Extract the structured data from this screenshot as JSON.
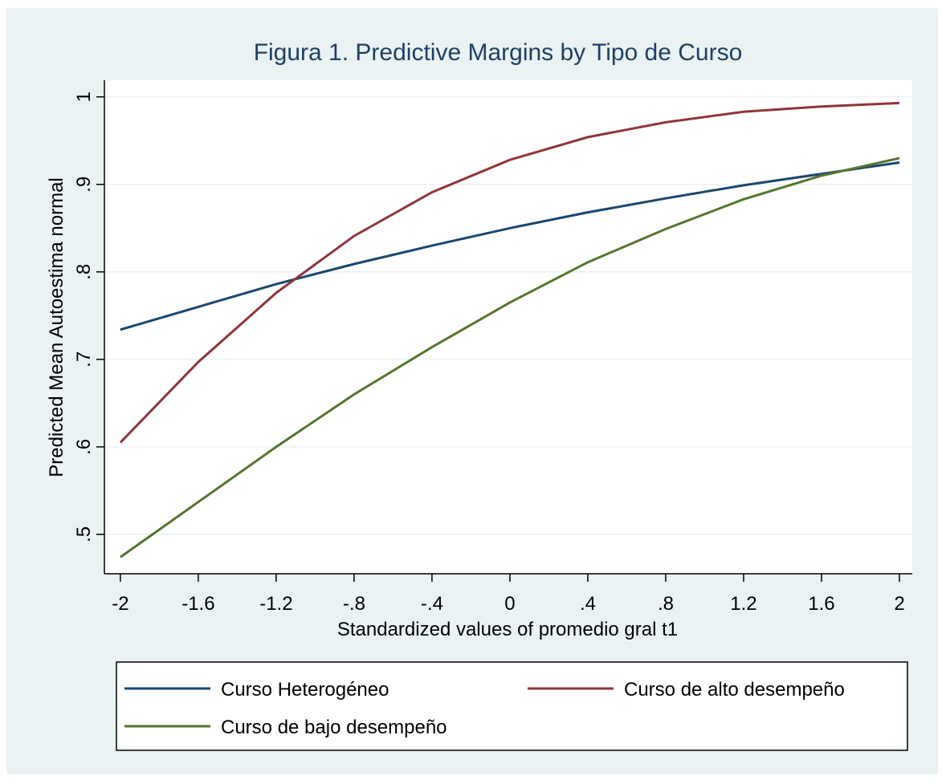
{
  "chart_data": {
    "type": "line",
    "title": "Figura 1. Predictive Margins by Tipo de Curso",
    "x_label": "Standardized values of promedio gral t1",
    "y_label": "Predicted Mean Autoestima normal",
    "x": [
      -2,
      -1.6,
      -1.2,
      -0.8,
      -0.4,
      0,
      0.4,
      0.8,
      1.2,
      1.6,
      2
    ],
    "series": [
      {
        "name": "Curso Heterogéneo",
        "color": "#1a476f",
        "values": [
          0.734,
          0.76,
          0.786,
          0.809,
          0.83,
          0.85,
          0.868,
          0.884,
          0.899,
          0.912,
          0.925
        ]
      },
      {
        "name": "Curso de alto desempeño",
        "color": "#90353b",
        "values": [
          0.605,
          0.697,
          0.776,
          0.841,
          0.891,
          0.928,
          0.954,
          0.971,
          0.983,
          0.989,
          0.993
        ]
      },
      {
        "name": "Curso de bajo desempeño",
        "color": "#55752f",
        "values": [
          0.474,
          0.537,
          0.6,
          0.66,
          0.714,
          0.765,
          0.811,
          0.849,
          0.883,
          0.91,
          0.93
        ]
      }
    ],
    "xlim": [
      -2.082,
      2.066
    ],
    "ylim": [
      0.455,
      1.019
    ],
    "xticks": [
      -2,
      {
        "value": -1.6,
        "label": "-1.6"
      },
      {
        "value": -1.2,
        "label": "-1.2"
      },
      {
        "value": -0.8,
        "label": "-.8"
      },
      {
        "value": -0.4,
        "label": "-.4"
      },
      0,
      {
        "value": 0.4,
        "label": ".4"
      },
      {
        "value": 0.8,
        "label": ".8"
      },
      1.2,
      1.6,
      2
    ],
    "yticks": [
      {
        "value": 0.5,
        "label": ".5"
      },
      {
        "value": 0.6,
        "label": ".6"
      },
      {
        "value": 0.7,
        "label": ".7"
      },
      {
        "value": 0.8,
        "label": ".8"
      },
      {
        "value": 0.9,
        "label": ".9"
      },
      1
    ],
    "grid": true,
    "legend": "bottom"
  }
}
